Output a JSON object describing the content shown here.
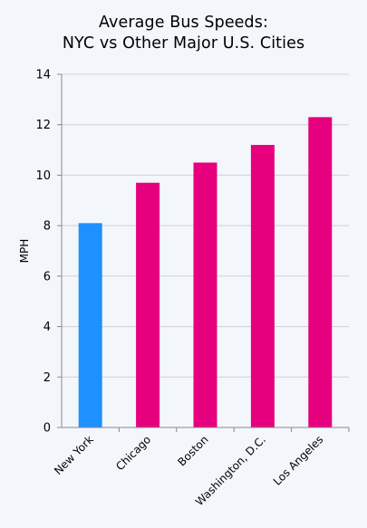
{
  "chart_data": {
    "type": "bar",
    "title_line1": "Average Bus Speeds:",
    "title_line2": "NYC vs Other Major U.S. Cities",
    "xlabel": "",
    "ylabel": "MPH",
    "categories": [
      "New York",
      "Chicago",
      "Boston",
      "Washington, D.C.",
      "Los Angeles"
    ],
    "values": [
      8.1,
      9.7,
      10.5,
      11.2,
      12.3
    ],
    "ylim": [
      0,
      14
    ],
    "yticks": [
      0,
      2,
      4,
      6,
      8,
      10,
      12,
      14
    ],
    "bar_colors": [
      "#1e90ff",
      "#e6007e",
      "#e6007e",
      "#e6007e",
      "#e6007e"
    ],
    "grid": true,
    "legend": "none"
  }
}
